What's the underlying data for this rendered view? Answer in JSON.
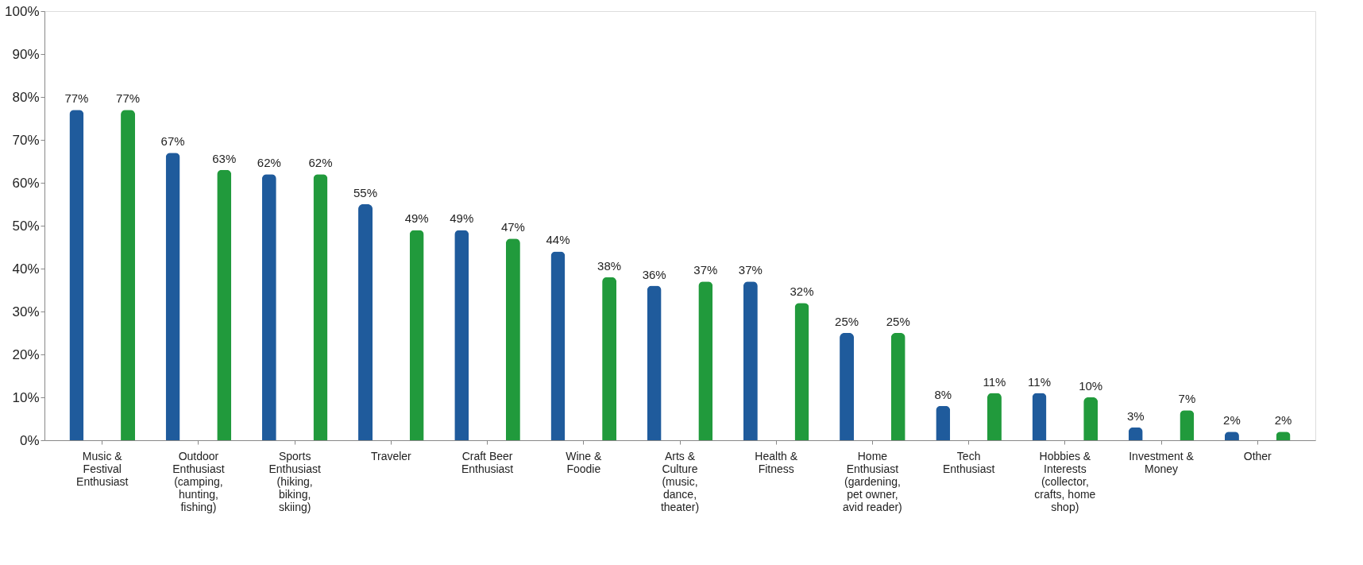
{
  "chart_data": {
    "type": "bar",
    "categories": [
      "Music & Festival Enthusiast",
      "Outdoor Enthusiast (camping, hunting, fishing)",
      "Sports Enthusiast (hiking, biking, skiing)",
      "Traveler",
      "Craft Beer Enthusiast",
      "Wine & Foodie",
      "Arts & Culture (music, dance, theater)",
      "Health & Fitness",
      "Home Enthusiast (gardening, pet owner, avid reader)",
      "Tech Enthusiast",
      "Hobbies & Interests (collector, crafts, home shop)",
      "Investment & Money",
      "Other"
    ],
    "series": [
      {
        "color": "#1f5b9c",
        "values": [
          77,
          67,
          62,
          55,
          49,
          44,
          36,
          37,
          25,
          8,
          11,
          3,
          2
        ],
        "value_labels": [
          "77%",
          "67%",
          "62%",
          "55%",
          "49%",
          "44%",
          "36%",
          "37%",
          "25%",
          "8%",
          "11%",
          "3%",
          "2%"
        ]
      },
      {
        "color": "#219a3c",
        "values": [
          77,
          63,
          62,
          49,
          47,
          38,
          37,
          32,
          25,
          11,
          10,
          7,
          2
        ],
        "value_labels": [
          "77%",
          "63%",
          "62%",
          "49%",
          "47%",
          "38%",
          "37%",
          "32%",
          "25%",
          "11%",
          "10%",
          "7%",
          "2%"
        ]
      }
    ],
    "ylim": [
      0,
      100
    ],
    "yticks": [
      {
        "value": 0,
        "label": "0%"
      },
      {
        "value": 10,
        "label": "10%"
      },
      {
        "value": 20,
        "label": "20%"
      },
      {
        "value": 30,
        "label": "30%"
      },
      {
        "value": 40,
        "label": "40%"
      },
      {
        "value": 50,
        "label": "50%"
      },
      {
        "value": 60,
        "label": "60%"
      },
      {
        "value": 70,
        "label": "70%"
      },
      {
        "value": 80,
        "label": "80%"
      },
      {
        "value": 90,
        "label": "90%"
      },
      {
        "value": 100,
        "label": "100%"
      }
    ],
    "grid": false
  }
}
